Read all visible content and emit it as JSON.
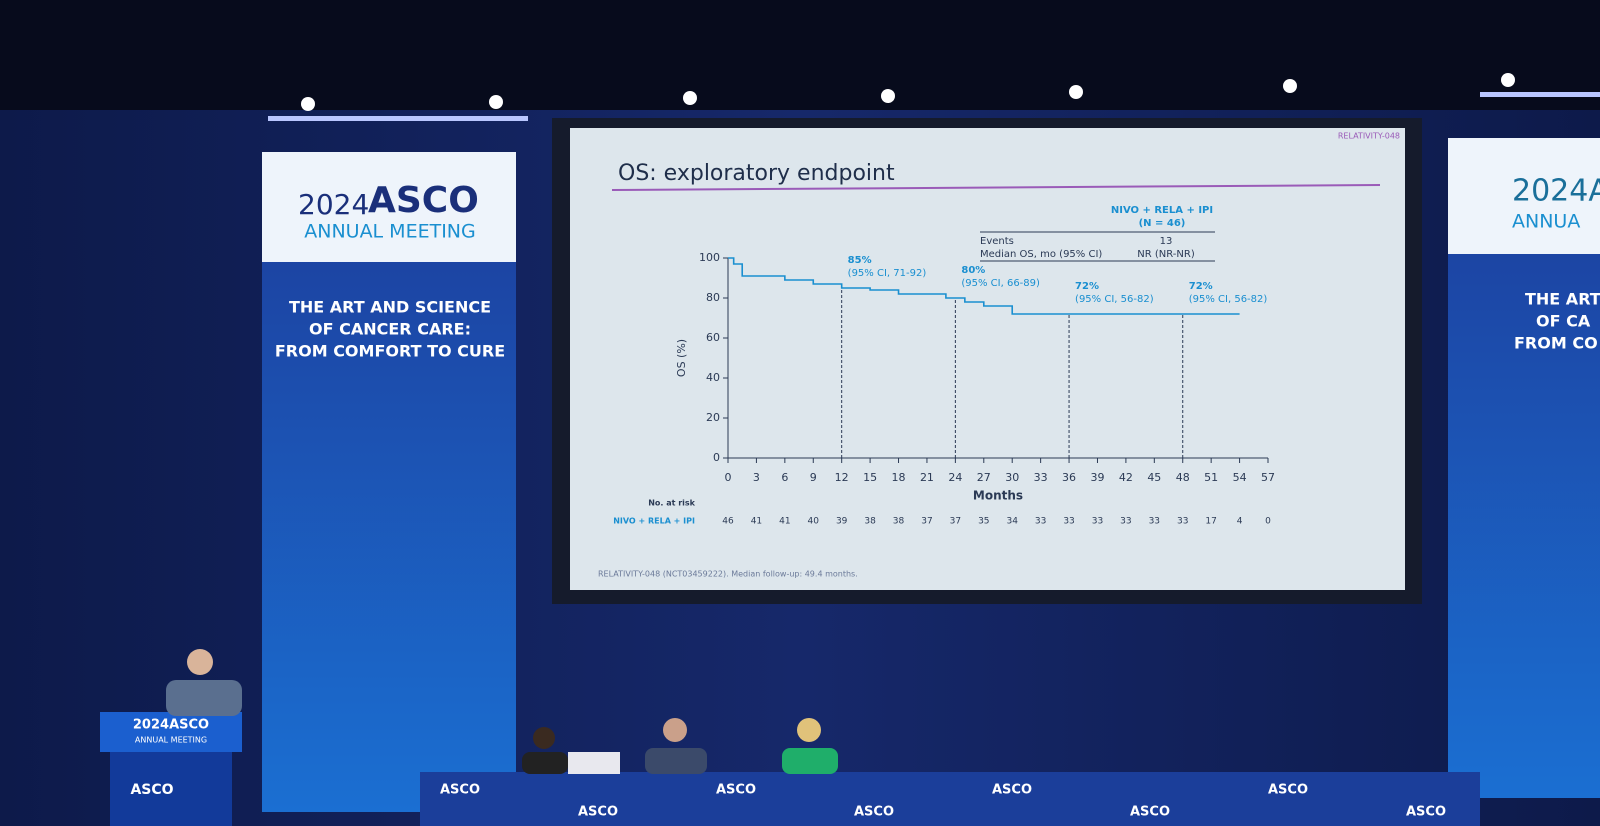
{
  "chart_data": {
    "type": "line",
    "source_label": "RELATIVITY-048",
    "title": "OS: exploratory endpoint",
    "xlabel": "Months",
    "ylabel": "OS (%)",
    "xlim": [
      0,
      57
    ],
    "ylim": [
      0,
      100
    ],
    "xticks": [
      0,
      3,
      6,
      9,
      12,
      15,
      18,
      21,
      24,
      27,
      30,
      33,
      36,
      39,
      42,
      45,
      48,
      51,
      54,
      57
    ],
    "yticks": [
      0,
      20,
      40,
      60,
      80,
      100
    ],
    "series": [
      {
        "name": "NIVO + RELA + IPI",
        "color": "#1a8fd0",
        "x": [
          0,
          0.6,
          0.6,
          1.5,
          1.5,
          6,
          6,
          9,
          9,
          12,
          12,
          15,
          15,
          18,
          18,
          23,
          23,
          25,
          25,
          27,
          27,
          30,
          30,
          54
        ],
        "values": [
          100,
          100,
          97,
          97,
          91,
          91,
          89,
          89,
          87,
          87,
          85,
          85,
          84,
          84,
          82,
          82,
          80,
          80,
          78,
          78,
          76,
          76,
          72,
          72
        ]
      }
    ],
    "annotations": [
      {
        "x": 12,
        "y": 85,
        "label": "85%",
        "ci": "(95% CI, 71-92)"
      },
      {
        "x": 24,
        "y": 80,
        "label": "80%",
        "ci": "(95% CI, 66-89)"
      },
      {
        "x": 36,
        "y": 72,
        "label": "72%",
        "ci": "(95% CI, 56-82)"
      },
      {
        "x": 48,
        "y": 72,
        "label": "72%",
        "ci": "(95% CI, 56-82)"
      }
    ],
    "summary_table": {
      "header": [
        "NIVO + RELA + IPI",
        "(N = 46)"
      ],
      "rows": [
        [
          "Events",
          "13"
        ],
        [
          "Median OS, mo (95% CI)",
          "NR (NR-NR)"
        ]
      ]
    },
    "risk_table": {
      "title": "No. at risk",
      "row_label": "NIVO + RELA + IPI",
      "values": [
        46,
        41,
        41,
        40,
        39,
        38,
        38,
        37,
        37,
        35,
        34,
        33,
        33,
        33,
        33,
        33,
        33,
        17,
        4,
        0
      ]
    },
    "footnote": "RELATIVITY-048 (NCT03459222). Median follow-up: 49.4 months."
  },
  "scene": {
    "banner_left": {
      "year": "2024",
      "brand": "ASCO",
      "subtitle": "ANNUAL MEETING",
      "theme": [
        "THE ART AND SCIENCE",
        "OF CANCER CARE:",
        "FROM COMFORT TO CURE"
      ]
    },
    "banner_right": {
      "year": "2024A",
      "subtitle": "ANNUA",
      "theme": [
        "THE ART",
        "OF CA",
        "FROM CO"
      ]
    },
    "podium": [
      "2024ASCO",
      "ANNUAL MEETING",
      "ASCO"
    ],
    "table_logos": [
      "ASCO",
      "ASCO",
      "ASCO",
      "ASCO",
      "ASCO",
      "ASCO",
      "ASCO",
      "ASCO"
    ]
  }
}
